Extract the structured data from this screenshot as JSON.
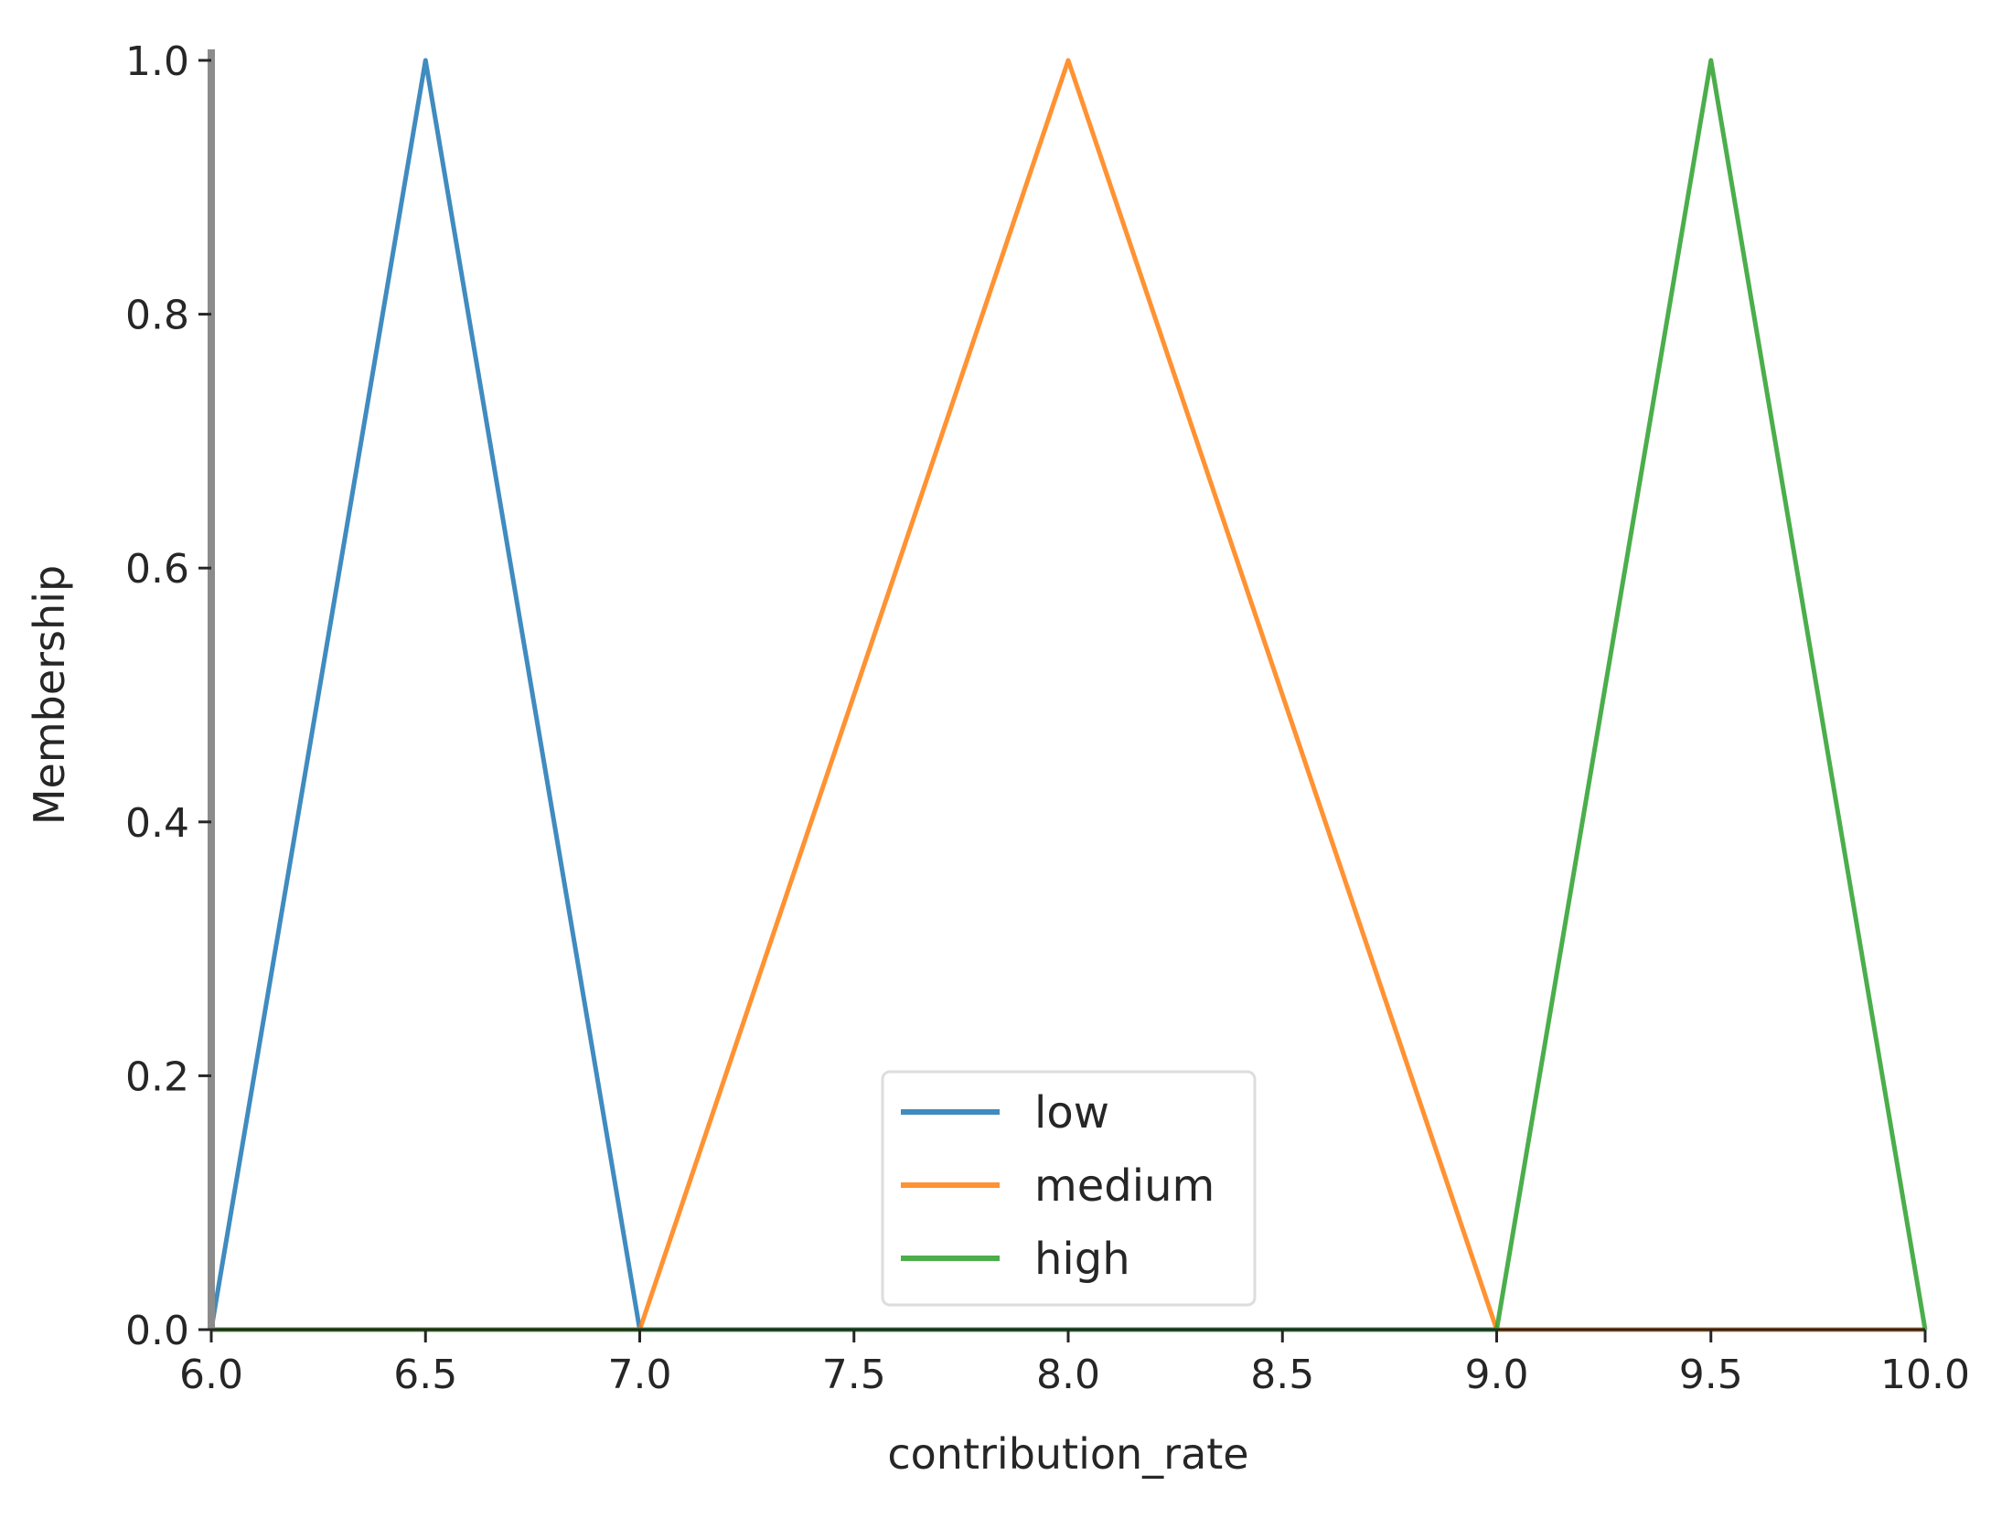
{
  "chart_data": {
    "type": "line",
    "title": "",
    "xlabel": "contribution_rate",
    "ylabel": "Membership",
    "xlim": [
      6.0,
      10.0
    ],
    "ylim": [
      0.0,
      1.0
    ],
    "xticks": [
      "6.0",
      "6.5",
      "7.0",
      "7.5",
      "8.0",
      "8.5",
      "9.0",
      "9.5",
      "10.0"
    ],
    "yticks": [
      "0.0",
      "0.2",
      "0.4",
      "0.6",
      "0.8",
      "1.0"
    ],
    "grid": false,
    "legend_position": "lower-center",
    "series": [
      {
        "name": "low",
        "color": "#1f77b4",
        "x": [
          6.0,
          6.5,
          7.0,
          7.5,
          8.0,
          8.5,
          9.0,
          9.5,
          10.0
        ],
        "y": [
          0.0,
          1.0,
          0.0,
          0.0,
          0.0,
          0.0,
          0.0,
          0.0,
          0.0
        ]
      },
      {
        "name": "medium",
        "color": "#ff7f0e",
        "x": [
          6.0,
          6.5,
          7.0,
          7.5,
          8.0,
          8.5,
          9.0,
          9.5,
          10.0
        ],
        "y": [
          0.0,
          0.0,
          0.0,
          0.5,
          1.0,
          0.5,
          0.0,
          0.0,
          0.0
        ]
      },
      {
        "name": "high",
        "color": "#2ca02c",
        "x": [
          6.0,
          6.5,
          7.0,
          7.5,
          8.0,
          8.5,
          9.0,
          9.5,
          10.0
        ],
        "y": [
          0.0,
          0.0,
          0.0,
          0.0,
          0.0,
          0.0,
          0.0,
          1.0,
          0.0
        ]
      }
    ]
  }
}
